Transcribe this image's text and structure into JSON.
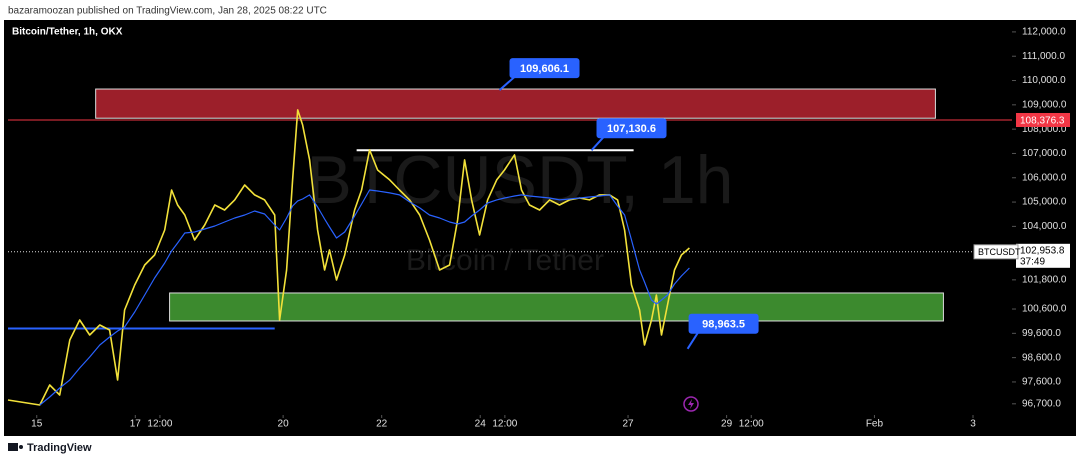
{
  "header": {
    "publisher": "bazaramoozan published on TradingView.com, Jan 28, 2025 08:22 UTC"
  },
  "footer": {
    "brand": "TradingView"
  },
  "chart_data": {
    "type": "line",
    "title": "Bitcoin/Tether, 1h, OKX",
    "watermark": "BTCUSDT, 1h",
    "watermark_subtitle": "Bitcoin / Tether",
    "x": [
      -14,
      1.5,
      6.3,
      11.2,
      16.1,
      20.9,
      25.8,
      30.7,
      35.5,
      39.4,
      42.8,
      47.7,
      52.6,
      57.4,
      62.3,
      65.7,
      68.6,
      72.1,
      76.9,
      81.8,
      86.7,
      91.5,
      96.4,
      101.3,
      106.1,
      111,
      115.9,
      118.3,
      121.7,
      124.6,
      127.1,
      129.5,
      132.9,
      136.8,
      140.2,
      142.6,
      146,
      150,
      154.8,
      158.2,
      162.1,
      166,
      171.9,
      176.7,
      181.6,
      186.5,
      191.3,
      196.2,
      201.1,
      205,
      208.4,
      211.8,
      215.7,
      219.6,
      224,
      227.8,
      232.7,
      236.1,
      240,
      244.9,
      249.8,
      254.6,
      259.5,
      264.4,
      269.2,
      274.1,
      279,
      282.9,
      286.3,
      289.7,
      293.6,
      296,
      299.4,
      301.8,
      304.3,
      307.2,
      310.6,
      314,
      317.9
    ],
    "series": [
      {
        "name": "BTCUSDT",
        "color": "#f2e13a",
        "values": [
          96857,
          96651,
          97474,
          97063,
          99326,
          100149,
          99532,
          99943,
          99737,
          97680,
          100560,
          101589,
          102412,
          102824,
          103852,
          105498,
          104881,
          104469,
          103441,
          104058,
          104881,
          104675,
          105087,
          105704,
          105293,
          105087,
          104469,
          100149,
          102206,
          105910,
          108790,
          108173,
          106733,
          103852,
          102206,
          103029,
          101795,
          102824,
          104675,
          105498,
          107144,
          106321,
          105910,
          105498,
          105087,
          104469,
          103441,
          102206,
          102412,
          104264,
          106733,
          105087,
          103647,
          105087,
          105910,
          106321,
          106939,
          105498,
          104881,
          104675,
          105087,
          104881,
          105087,
          105169,
          105087,
          105293,
          105293,
          105087,
          103852,
          101589,
          100560,
          99120,
          100149,
          101178,
          99532,
          100766,
          102206,
          102824,
          103112
        ]
      },
      {
        "color": "#2962ff",
        "values": [
          null,
          96651,
          96980,
          97350,
          97680,
          98174,
          98626,
          99120,
          99449,
          99696,
          99861,
          100478,
          101178,
          101877,
          102494,
          102988,
          103317,
          103729,
          103770,
          103893,
          104017,
          104181,
          104346,
          104469,
          104634,
          104510,
          104058,
          103852,
          104346,
          104840,
          105046,
          105128,
          105293,
          104799,
          104305,
          103976,
          103523,
          103770,
          104428,
          104922,
          105498,
          105457,
          105375,
          105293,
          105005,
          104758,
          104469,
          104346,
          104181,
          104099,
          104181,
          104428,
          104675,
          104963,
          105087,
          105169,
          105251,
          105293,
          105251,
          105210,
          105169,
          105087,
          105128,
          105169,
          105210,
          105251,
          105293,
          104840,
          104469,
          103441,
          102206,
          101712,
          100972,
          100807,
          100972,
          101178,
          101630,
          101959,
          102288
        ]
      }
    ],
    "xlim": [
      -14,
      475
    ],
    "xticks": [
      {
        "value": 0,
        "label": "15"
      },
      {
        "value": 48,
        "label": "17"
      },
      {
        "value": 60,
        "label": "12:00"
      },
      {
        "value": 120,
        "label": "20"
      },
      {
        "value": 168,
        "label": "22"
      },
      {
        "value": 216,
        "label": "24"
      },
      {
        "value": 228,
        "label": "12:00"
      },
      {
        "value": 288,
        "label": "27"
      },
      {
        "value": 336,
        "label": "29"
      },
      {
        "value": 348,
        "label": "12:00"
      },
      {
        "value": 408,
        "label": "Feb"
      },
      {
        "value": 456,
        "label": "3"
      }
    ],
    "ylim": [
      96240,
      112490
    ],
    "yticks": [
      {
        "value": 112000,
        "label": "112,000.0"
      },
      {
        "value": 111000,
        "label": "111,000.0"
      },
      {
        "value": 110000,
        "label": "110,000.0"
      },
      {
        "value": 109000,
        "label": "109,000.0"
      },
      {
        "value": 108000,
        "label": "108,000.0"
      },
      {
        "value": 107000,
        "label": "107,000.0"
      },
      {
        "value": 106000,
        "label": "106,000.0"
      },
      {
        "value": 105000,
        "label": "105,000.0"
      },
      {
        "value": 104000,
        "label": "104,000.0"
      },
      {
        "value": 101800,
        "label": "101,800.0"
      },
      {
        "value": 100600,
        "label": "100,600.0"
      },
      {
        "value": 99600,
        "label": "99,600.0"
      },
      {
        "value": 98600,
        "label": "98,600.0"
      },
      {
        "value": 97600,
        "label": "97,600.0"
      },
      {
        "value": 96700,
        "label": "96,700.0"
      }
    ],
    "zones": [
      {
        "x": [
          28.7,
          437.7
        ],
        "y": [
          108450,
          109650
        ],
        "color": "#9c1f2a"
      },
      {
        "x": [
          64.7,
          441.6
        ],
        "y": [
          100108,
          101260
        ],
        "color": "#3c8a2e"
      }
    ],
    "trend_lines": [
      {
        "x": [
          155.8,
          290.7
        ],
        "y": 107130.6,
        "color": "#ffffff"
      },
      {
        "x": [
          -14,
          115.9
        ],
        "y": 99800,
        "color": "#2962ff"
      }
    ],
    "callouts": [
      {
        "x": 225.4,
        "value": 109606.1,
        "label": "109,606.1"
      },
      {
        "x": 270.2,
        "value": 107130.6,
        "label": "107,130.6"
      },
      {
        "x": 317,
        "value": 98963.5,
        "label": "98,963.5"
      }
    ],
    "alert_level": {
      "value": 108376.3,
      "label": "108,376.3",
      "color": "#f23645"
    },
    "last_price": {
      "value": 102953.8,
      "label": "102,953.8",
      "countdown": "37:49",
      "symbol": "BTCUSDT"
    }
  }
}
